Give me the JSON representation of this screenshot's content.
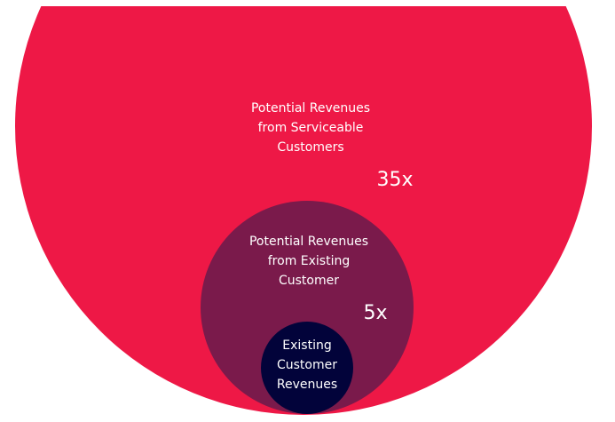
{
  "colors": {
    "outer": "#EE1846",
    "middle": "#7A1A4B",
    "inner": "#02033A",
    "text": "#FFFFFF"
  },
  "outer": {
    "lines": [
      "Potential Revenues",
      "from Serviceable",
      "Customers"
    ],
    "multiplier": "35x"
  },
  "middle": {
    "lines": [
      "Potential Revenues",
      "from Existing",
      "Customer"
    ],
    "multiplier": "5x"
  },
  "inner": {
    "lines": [
      "Existing",
      "Customer",
      "Revenues"
    ]
  }
}
